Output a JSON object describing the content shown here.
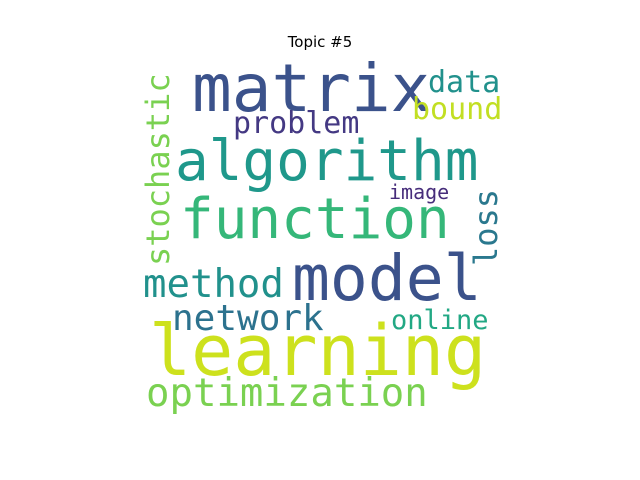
{
  "title": "Topic #5",
  "words": {
    "matrix": {
      "text": "matrix",
      "color": "#3b528b"
    },
    "data": {
      "text": "data",
      "color": "#21918c"
    },
    "stochastic": {
      "text": "stochastic",
      "color": "#7ad151"
    },
    "bound": {
      "text": "bound",
      "color": "#c2df23"
    },
    "problem": {
      "text": "problem",
      "color": "#443983"
    },
    "algorithm": {
      "text": "algorithm",
      "color": "#1f988b"
    },
    "image": {
      "text": "image",
      "color": "#472d7b"
    },
    "function": {
      "text": "function",
      "color": "#35b779"
    },
    "loss": {
      "text": "loss",
      "color": "#2a788e"
    },
    "method": {
      "text": "method",
      "color": "#21918c"
    },
    "model": {
      "text": "model",
      "color": "#3b528b"
    },
    "network": {
      "text": "network",
      "color": "#2c728e"
    },
    "online": {
      "text": "online",
      "color": "#22a884"
    },
    "learning": {
      "text": "learning",
      "color": "#cde11d"
    },
    "optimization": {
      "text": "optimization",
      "color": "#7ad151"
    }
  }
}
